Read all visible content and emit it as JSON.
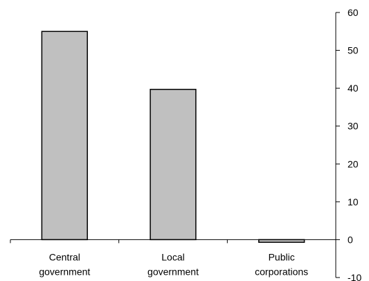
{
  "chart_data": {
    "type": "bar",
    "title": "",
    "xlabel": "",
    "ylabel": "",
    "categories": [
      "Central government",
      "Local government",
      "Public corporations"
    ],
    "category_lines": [
      [
        "Central",
        "government"
      ],
      [
        "Local",
        "government"
      ],
      [
        "Public",
        "corporations"
      ]
    ],
    "values": [
      55,
      39.7,
      -0.7
    ],
    "ylim": [
      -10,
      60
    ],
    "yticks": [
      -10,
      0,
      10,
      20,
      30,
      40,
      50,
      60
    ],
    "y_axis_position": "right",
    "grid": false,
    "legend": "none",
    "bar_color": "#c0c0c0",
    "bar_edge_color": "#000000"
  }
}
